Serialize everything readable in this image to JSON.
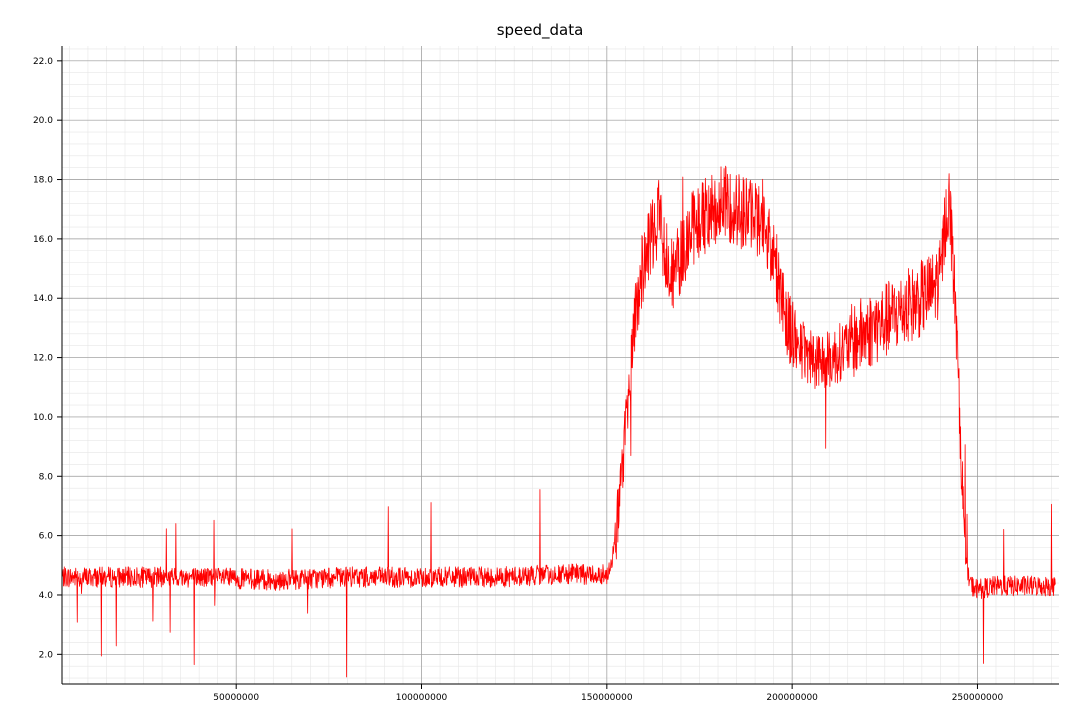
{
  "chart_data": {
    "type": "line",
    "title": "speed_data",
    "xlabel": "",
    "ylabel": "",
    "xlim": [
      3000000,
      272000000
    ],
    "ylim": [
      1.0,
      22.5
    ],
    "x_ticks": [
      50000000,
      100000000,
      150000000,
      200000000,
      250000000
    ],
    "x_tick_labels": [
      "50000000",
      "100000000",
      "150000000",
      "200000000",
      "250000000"
    ],
    "y_ticks": [
      2.0,
      4.0,
      6.0,
      8.0,
      10.0,
      12.0,
      14.0,
      16.0,
      18.0,
      20.0,
      22.0
    ],
    "y_tick_labels": [
      "2.0",
      "4.0",
      "6.0",
      "8.0",
      "10.0",
      "12.0",
      "14.0",
      "16.0",
      "18.0",
      "20.0",
      "22.0"
    ],
    "grid": true,
    "legend": "none",
    "line_color": "#ff0000",
    "series": [
      {
        "name": "",
        "x": [
          3000000,
          20000000,
          40000000,
          60000000,
          80000000,
          100000000,
          120000000,
          140000000,
          148000000,
          150000000,
          152000000,
          154000000,
          156000000,
          158000000,
          160000000,
          162000000,
          164000000,
          166000000,
          168000000,
          170000000,
          172000000,
          175000000,
          178000000,
          181000000,
          184000000,
          187000000,
          190000000,
          193000000,
          196000000,
          198000000,
          200000000,
          203000000,
          206000000,
          210000000,
          214000000,
          218000000,
          222000000,
          226000000,
          230000000,
          234000000,
          236000000,
          238000000,
          240000000,
          241500000,
          242500000,
          243500000,
          244500000,
          245500000,
          246500000,
          247500000,
          248500000,
          250000000,
          255000000,
          260000000,
          265000000,
          268000000,
          271000000
        ],
        "y": [
          4.6,
          4.6,
          4.6,
          4.5,
          4.6,
          4.6,
          4.6,
          4.7,
          4.7,
          4.7,
          5.5,
          8.0,
          11.0,
          13.8,
          15.2,
          16.0,
          16.8,
          15.5,
          14.8,
          15.4,
          16.2,
          16.6,
          17.0,
          17.2,
          17.1,
          16.9,
          16.8,
          16.3,
          14.8,
          13.6,
          12.8,
          12.2,
          12.0,
          11.9,
          12.3,
          12.7,
          13.0,
          13.3,
          13.6,
          13.9,
          14.1,
          14.3,
          14.7,
          16.8,
          17.2,
          15.0,
          12.5,
          9.0,
          6.0,
          4.6,
          4.3,
          4.2,
          4.3,
          4.3,
          4.3,
          4.3,
          4.3
        ]
      }
    ]
  }
}
